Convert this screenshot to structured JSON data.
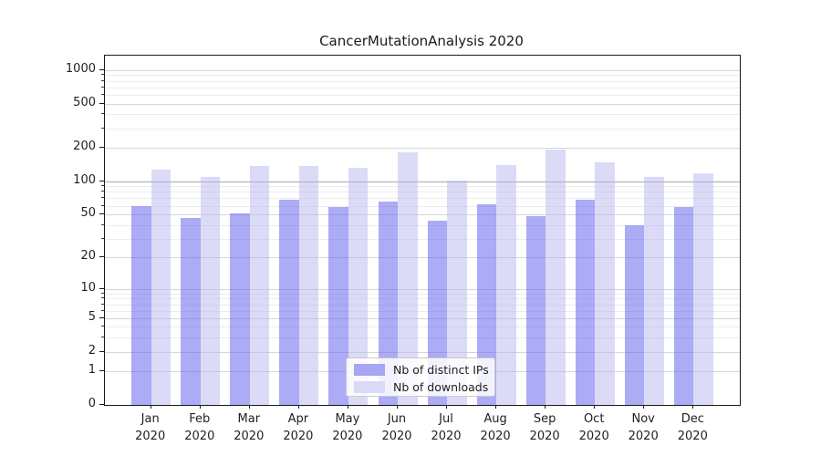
{
  "title": "CancerMutationAnalysis 2020",
  "chart_data": {
    "type": "bar",
    "title": "CancerMutationAnalysis 2020",
    "categories": [
      "Jan 2020",
      "Feb 2020",
      "Mar 2020",
      "Apr 2020",
      "May 2020",
      "Jun 2020",
      "Jul 2020",
      "Aug 2020",
      "Sep 2020",
      "Oct 2020",
      "Nov 2020",
      "Dec 2020"
    ],
    "series": [
      {
        "name": "Nb of distinct IPs",
        "color": "rgba(102,102,238,0.55)",
        "legend_color": "#a6a6f2",
        "values": [
          60,
          46,
          51,
          68,
          58,
          65,
          44,
          62,
          48,
          68,
          40,
          58
        ]
      },
      {
        "name": "Nb of downloads",
        "color": "rgba(184,184,240,0.5)",
        "legend_color": "#dadaf8",
        "values": [
          128,
          110,
          137,
          138,
          133,
          182,
          102,
          140,
          192,
          148,
          109,
          117
        ]
      }
    ],
    "xlabel": "",
    "ylabel": "",
    "yscale": "log1p",
    "y_ticks": [
      0,
      1,
      2,
      5,
      10,
      20,
      50,
      100,
      200,
      500,
      1000
    ],
    "y_minor_ticks": [
      3,
      4,
      6,
      7,
      8,
      9,
      30,
      40,
      60,
      70,
      80,
      90,
      300,
      400,
      600,
      700,
      800,
      900
    ],
    "ylim": [
      0,
      1345
    ],
    "grid": true,
    "legend_position": "lower center",
    "emphasized_gridline": 100
  }
}
